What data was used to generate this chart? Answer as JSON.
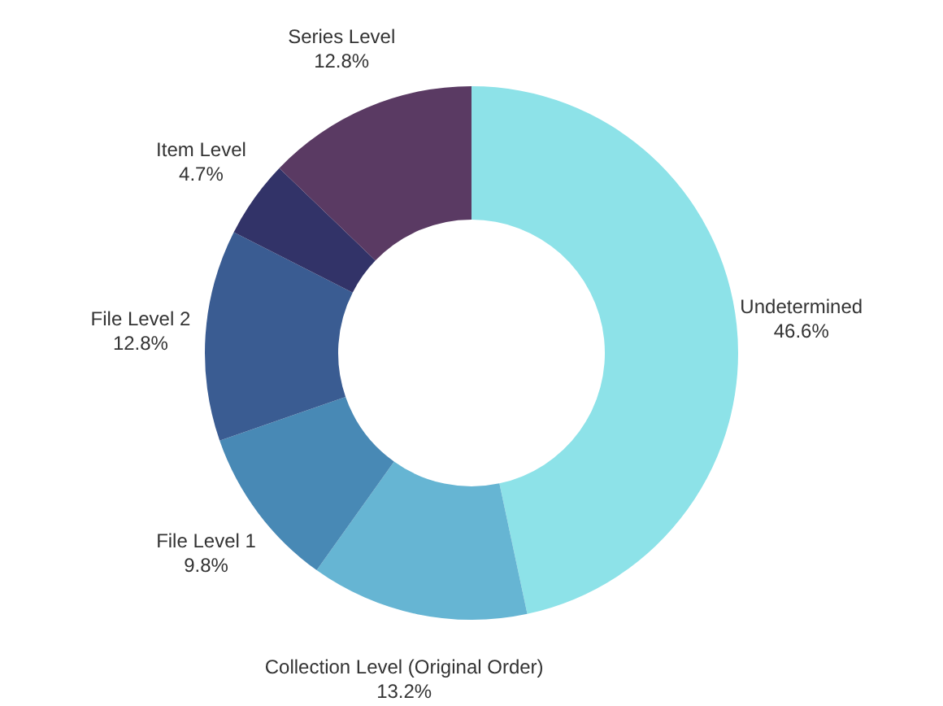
{
  "chart_data": {
    "type": "donut",
    "categories": [
      "Undetermined",
      "Collection Level (Original Order)",
      "File Level 1",
      "File Level 2",
      "Item Level",
      "Series Level"
    ],
    "values": [
      46.6,
      13.2,
      9.8,
      12.8,
      4.7,
      12.8
    ],
    "colors": [
      "#8de2e8",
      "#66b5d3",
      "#4889b5",
      "#3a5c92",
      "#323368",
      "#5a3a63"
    ],
    "value_labels": [
      "46.6%",
      "13.2%",
      "9.8%",
      "12.8%",
      "4.7%",
      "12.8%"
    ]
  }
}
